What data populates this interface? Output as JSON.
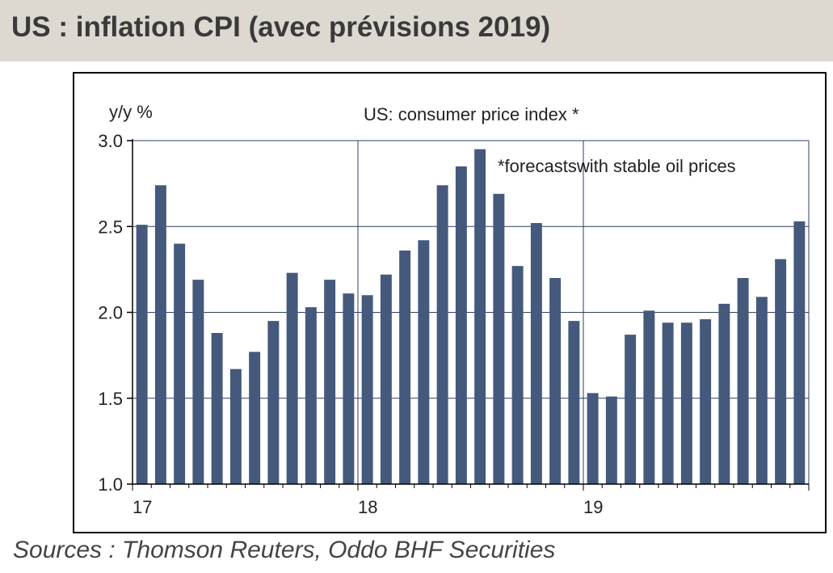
{
  "header": {
    "title": "US : inflation CPI (avec prévisions 2019)",
    "background": "#ddd9d1"
  },
  "source": "Sources : Thomson Reuters, Oddo BHF Securities",
  "chart_data": {
    "type": "bar",
    "title": "US: consumer price index *",
    "annotation": "*forecastswith stable oil prices",
    "ylabel": "y/y %",
    "xlabel": "",
    "ylim": [
      1.0,
      3.0
    ],
    "y_ticks": [
      "3.0",
      "2.5",
      "2.0",
      "1.5",
      "1.0"
    ],
    "x_tick_labels": [
      "17",
      "18",
      "19"
    ],
    "grid": true,
    "bar_color": "#44597c",
    "categories": [
      "17-01",
      "17-02",
      "17-03",
      "17-04",
      "17-05",
      "17-06",
      "17-07",
      "17-08",
      "17-09",
      "17-10",
      "17-11",
      "17-12",
      "18-01",
      "18-02",
      "18-03",
      "18-04",
      "18-05",
      "18-06",
      "18-07",
      "18-08",
      "18-09",
      "18-10",
      "18-11",
      "18-12",
      "19-01",
      "19-02",
      "19-03",
      "19-04",
      "19-05",
      "19-06",
      "19-07",
      "19-08",
      "19-09",
      "19-10",
      "19-11",
      "19-12"
    ],
    "values": [
      2.51,
      2.74,
      2.4,
      2.19,
      1.88,
      1.67,
      1.77,
      1.95,
      2.23,
      2.03,
      2.19,
      2.11,
      2.1,
      2.22,
      2.36,
      2.42,
      2.74,
      2.85,
      2.95,
      2.69,
      2.27,
      2.52,
      2.2,
      1.95,
      1.53,
      1.51,
      1.87,
      2.01,
      1.94,
      1.94,
      1.96,
      2.05,
      2.2,
      2.09,
      2.31,
      2.53
    ]
  }
}
